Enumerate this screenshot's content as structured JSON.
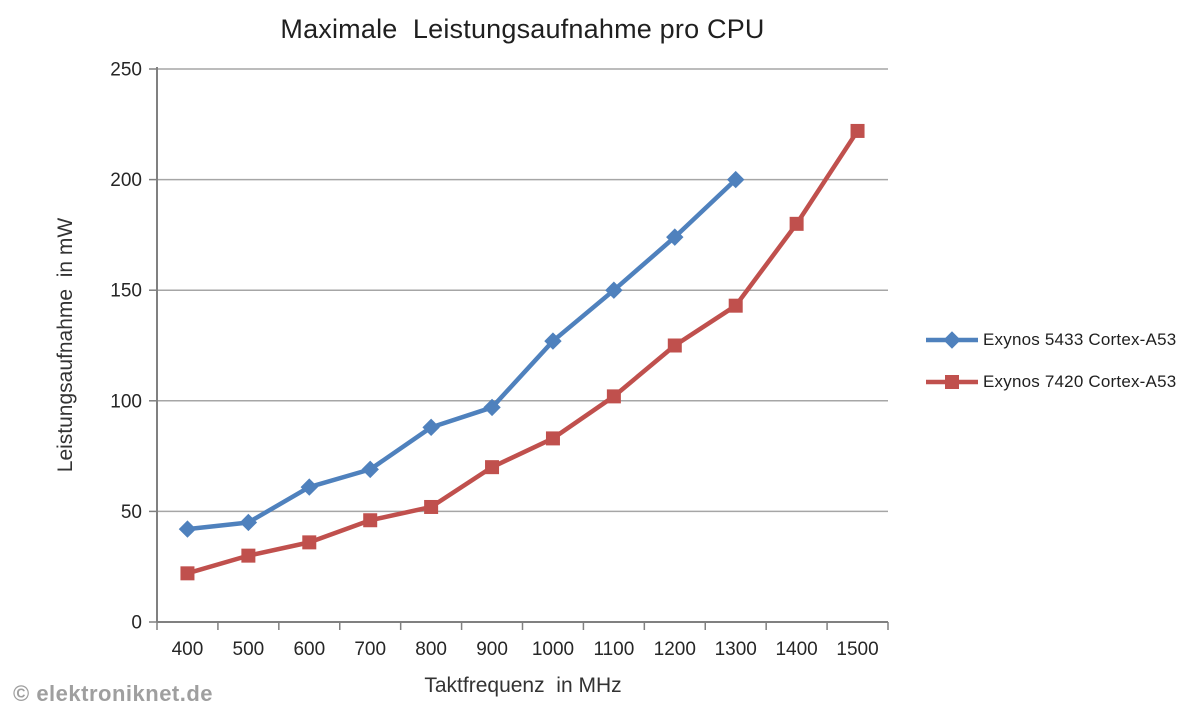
{
  "watermark": "© elektroniknet.de",
  "chart_data": {
    "type": "line",
    "title": "Maximale  Leistungsaufnahme pro CPU",
    "xlabel": "Taktfrequenz  in MHz",
    "ylabel": "Leistungsaufnahme  in mW",
    "categories": [
      400,
      500,
      600,
      700,
      800,
      900,
      1000,
      1100,
      1200,
      1300,
      1400,
      1500
    ],
    "ylim": [
      0,
      250
    ],
    "ytick_step": 50,
    "grid": "horizontal",
    "legend_position": "right",
    "colors": {
      "gridline": "#a6a6a6",
      "axis": "#808080",
      "tick_label": "#262626"
    },
    "series": [
      {
        "name": "Exynos 5433 Cortex-A53",
        "color": "#4F81BD",
        "marker": "diamond",
        "x": [
          400,
          500,
          600,
          700,
          800,
          900,
          1000,
          1100,
          1200,
          1300
        ],
        "values": [
          42,
          45,
          61,
          69,
          88,
          97,
          127,
          150,
          174,
          200
        ]
      },
      {
        "name": "Exynos 7420 Cortex-A53",
        "color": "#C0504D",
        "marker": "square",
        "x": [
          400,
          500,
          600,
          700,
          800,
          900,
          1000,
          1100,
          1200,
          1300,
          1400,
          1500
        ],
        "values": [
          22,
          30,
          36,
          46,
          52,
          70,
          83,
          102,
          125,
          143,
          180,
          222
        ]
      }
    ]
  }
}
